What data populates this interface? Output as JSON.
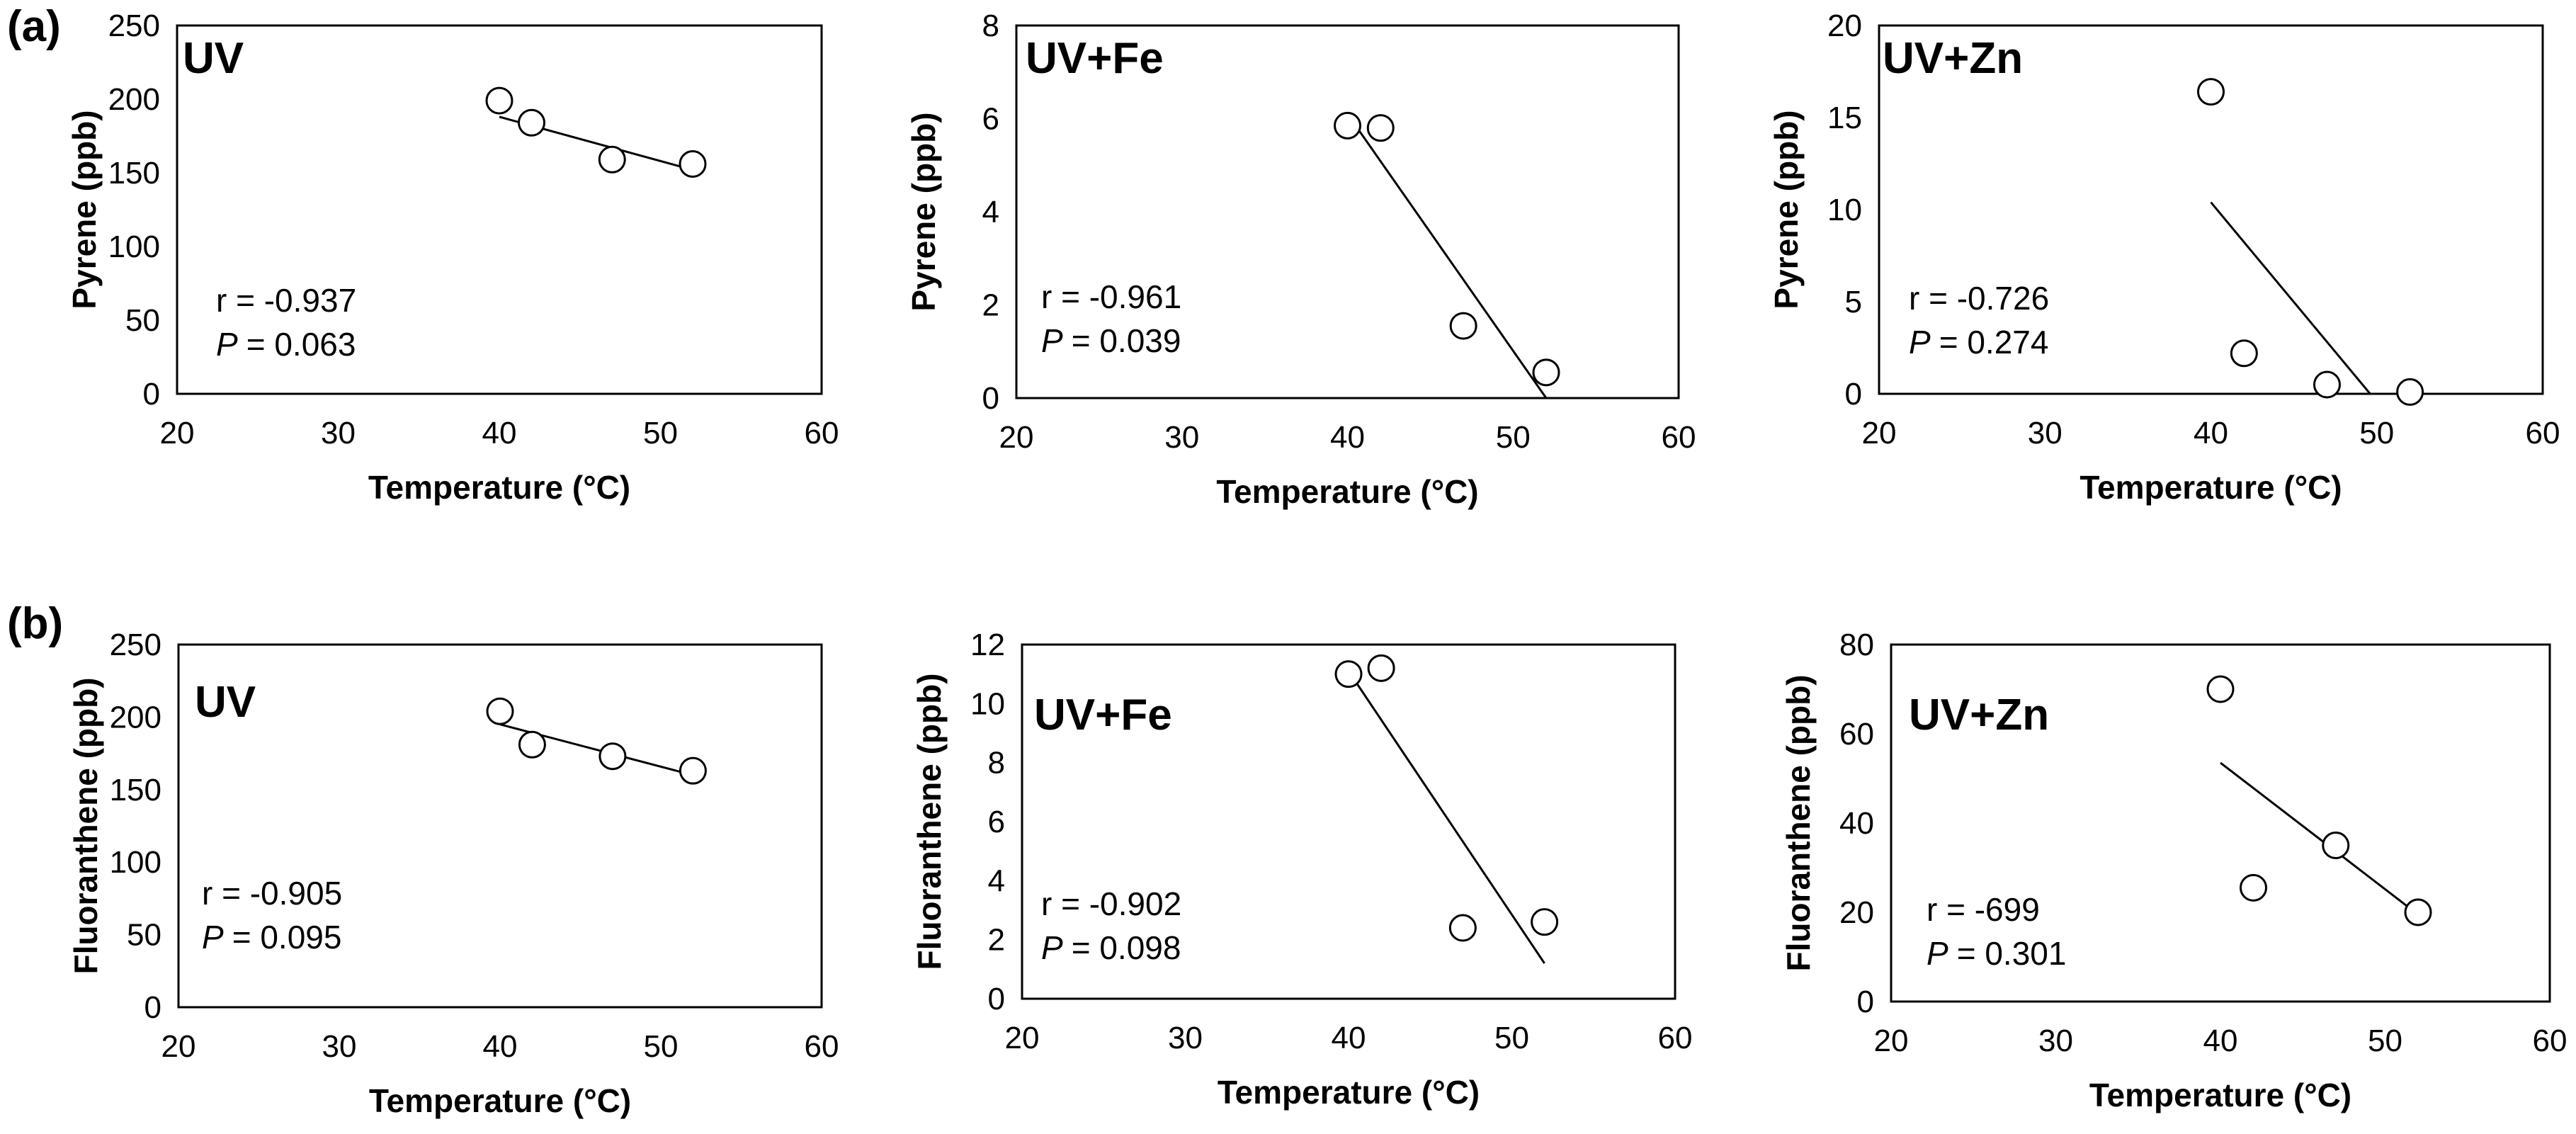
{
  "figure": {
    "panel_labels": [
      "(a)",
      "(b)"
    ]
  },
  "chart_data": [
    {
      "id": "a1",
      "row": "(a)",
      "type": "scatter",
      "title": "UV",
      "xlabel": "Temperature (°C)",
      "ylabel": "Pyrene (ppb)",
      "xlim": [
        20,
        60
      ],
      "xticks": [
        20,
        30,
        40,
        50,
        60
      ],
      "ylim": [
        0,
        250
      ],
      "yticks": [
        0,
        50,
        100,
        150,
        200,
        250
      ],
      "x": [
        40,
        42,
        47,
        52
      ],
      "y": [
        199,
        184,
        159,
        156
      ],
      "trendline": {
        "x": [
          40,
          52
        ],
        "y": [
          188,
          152
        ]
      },
      "r_text": "r = -0.937",
      "p_label": "P",
      "p_value": "= 0.063"
    },
    {
      "id": "a2",
      "row": "(a)",
      "type": "scatter",
      "title": "UV+Fe",
      "xlabel": "Temperature (°C)",
      "ylabel": "Pyrene (ppb)",
      "xlim": [
        20,
        60
      ],
      "xticks": [
        20,
        30,
        40,
        50,
        60
      ],
      "ylim": [
        0,
        8
      ],
      "yticks": [
        0,
        2,
        4,
        6,
        8
      ],
      "x": [
        40,
        42,
        47,
        52
      ],
      "y": [
        5.85,
        5.8,
        1.55,
        0.55
      ],
      "trendline": {
        "x": [
          40,
          52
        ],
        "y": [
          6.1,
          0
        ]
      },
      "r_text": "r = -0.961",
      "p_label": "P",
      "p_value": "= 0.039"
    },
    {
      "id": "a3",
      "row": "(a)",
      "type": "scatter",
      "title": "UV+Zn",
      "xlabel": "Temperature (°C)",
      "ylabel": "Pyrene (ppb)",
      "xlim": [
        20,
        60
      ],
      "xticks": [
        20,
        30,
        40,
        50,
        60
      ],
      "ylim": [
        0,
        20
      ],
      "yticks": [
        0,
        5,
        10,
        15,
        20
      ],
      "x": [
        40,
        42,
        47,
        52
      ],
      "y": [
        16.4,
        2.2,
        0.5,
        0.1
      ],
      "trendline": {
        "x": [
          40,
          49.6
        ],
        "y": [
          10.4,
          0
        ]
      },
      "r_text": "r = -0.726",
      "p_label": "P",
      "p_value": "= 0.274"
    },
    {
      "id": "b1",
      "row": "(b)",
      "type": "scatter",
      "title": "UV",
      "xlabel": "Temperature (°C)",
      "ylabel": "Fluoranthene (ppb)",
      "xlim": [
        20,
        60
      ],
      "xticks": [
        20,
        30,
        40,
        50,
        60
      ],
      "ylim": [
        0,
        250
      ],
      "yticks": [
        0,
        50,
        100,
        150,
        200,
        250
      ],
      "x": [
        40,
        42,
        47,
        52
      ],
      "y": [
        204,
        181,
        173,
        163
      ],
      "trendline": {
        "x": [
          40,
          52
        ],
        "y": [
          195,
          160
        ]
      },
      "r_text": "r = -0.905",
      "p_label": "P",
      "p_value": "= 0.095"
    },
    {
      "id": "b2",
      "row": "(b)",
      "type": "scatter",
      "title": "UV+Fe",
      "xlabel": "Temperature (°C)",
      "ylabel": "Fluoranthene (ppb)",
      "xlim": [
        20,
        60
      ],
      "xticks": [
        20,
        30,
        40,
        50,
        60
      ],
      "ylim": [
        0,
        12
      ],
      "yticks": [
        0,
        2,
        4,
        6,
        8,
        10,
        12
      ],
      "x": [
        40,
        42,
        47,
        52
      ],
      "y": [
        11,
        11.2,
        2.4,
        2.6
      ],
      "trendline": {
        "x": [
          40,
          52
        ],
        "y": [
          11.1,
          1.2
        ]
      },
      "r_text": "r = -0.902",
      "p_label": "P",
      "p_value": "= 0.098"
    },
    {
      "id": "b3",
      "row": "(b)",
      "type": "scatter",
      "title": "UV+Zn",
      "xlabel": "Temperature (°C)",
      "ylabel": "Fluoranthene (ppb)",
      "xlim": [
        20,
        60
      ],
      "xticks": [
        20,
        30,
        40,
        50,
        60
      ],
      "ylim": [
        0,
        80
      ],
      "yticks": [
        0,
        20,
        40,
        60,
        80
      ],
      "x": [
        40,
        42,
        47,
        52
      ],
      "y": [
        70,
        25.5,
        35,
        20
      ],
      "trendline": {
        "x": [
          40,
          52
        ],
        "y": [
          53.5,
          19.5
        ]
      },
      "r_text": "r = -699",
      "p_label": "P",
      "p_value": "= 0.301"
    }
  ]
}
